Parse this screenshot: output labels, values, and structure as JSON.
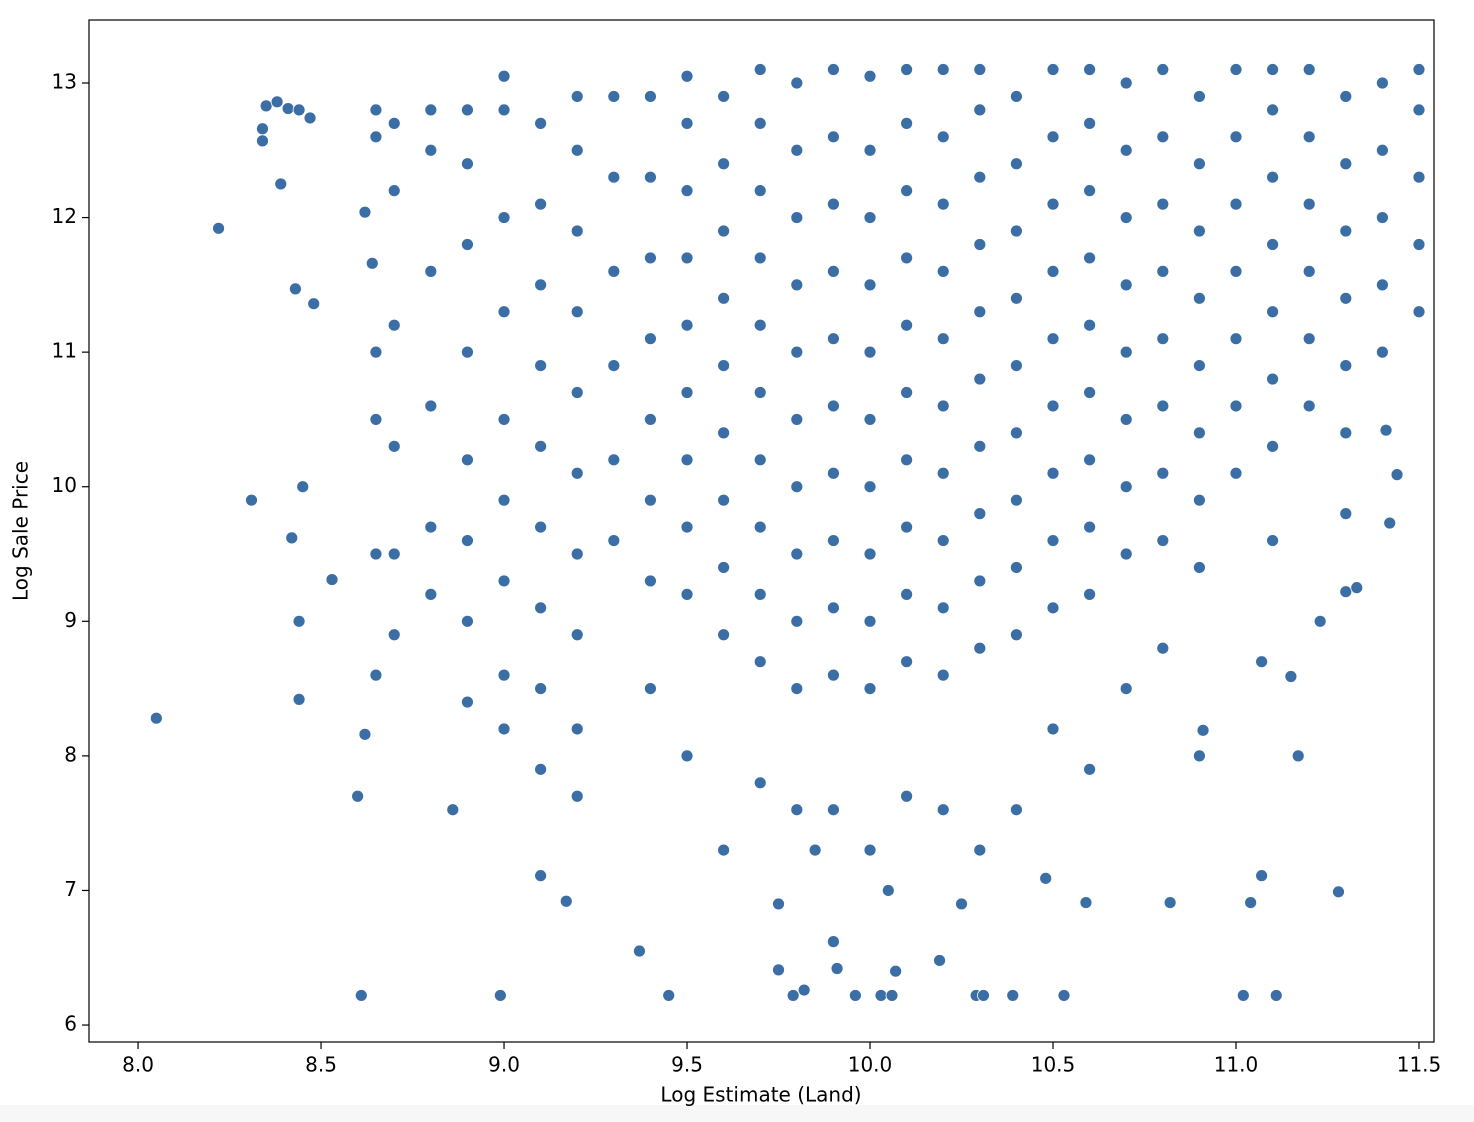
{
  "chart_data": {
    "type": "scatter",
    "xlabel": "Log Estimate (Land)",
    "ylabel": "Log Sale Price",
    "color": "#3a6ea5",
    "xlim": [
      7.866,
      11.541
    ],
    "ylim": [
      5.874,
      13.468
    ],
    "xticks": [
      {
        "value": 8,
        "label": "8.0"
      },
      8.5,
      {
        "value": 9,
        "label": "9.0"
      },
      9.5,
      {
        "value": 10,
        "label": "10.0"
      },
      10.5,
      {
        "value": 11,
        "label": "11.0"
      },
      11.5
    ],
    "yticks": [
      6,
      7,
      8,
      9,
      10,
      11,
      12,
      13
    ],
    "x": [
      8.05,
      8.22,
      8.31,
      8.34,
      8.34,
      8.35,
      8.38,
      8.41,
      8.44,
      8.47,
      8.39,
      8.43,
      8.48,
      8.42,
      8.45,
      8.44,
      8.44,
      8.53,
      8.6,
      8.61,
      8.62,
      8.62,
      8.64,
      8.86,
      8.99,
      9.1,
      9.17,
      9.37,
      9.45,
      9.75,
      9.79,
      9.82,
      9.9,
      9.91,
      9.96,
      10.03,
      10.06,
      10.07,
      10.19,
      10.29,
      10.31,
      10.39,
      10.53,
      11.02,
      11.11,
      11.28,
      11.07,
      11.04,
      10.82,
      10.59,
      10.48,
      11.17,
      11.23,
      11.3,
      11.33,
      11.44,
      11.42,
      11.41,
      11.15,
      11.07,
      10.91,
      10.9,
      8.65,
      8.65,
      8.65,
      8.65,
      8.65,
      8.65,
      8.7,
      8.7,
      8.7,
      8.7,
      8.7,
      8.7,
      8.8,
      8.8,
      8.8,
      8.8,
      8.8,
      8.8,
      8.9,
      8.9,
      8.9,
      8.9,
      8.9,
      8.9,
      8.9,
      8.9,
      9.0,
      9.0,
      9.0,
      9.0,
      9.0,
      9.0,
      9.0,
      9.0,
      9.0,
      9.1,
      9.1,
      9.1,
      9.1,
      9.1,
      9.1,
      9.1,
      9.1,
      9.1,
      9.2,
      9.2,
      9.2,
      9.2,
      9.2,
      9.2,
      9.2,
      9.2,
      9.2,
      9.2,
      9.3,
      9.3,
      9.3,
      9.3,
      9.3,
      9.3,
      9.4,
      9.4,
      9.4,
      9.4,
      9.4,
      9.4,
      9.4,
      9.5,
      9.5,
      9.5,
      9.5,
      9.5,
      9.5,
      9.5,
      9.5,
      9.5,
      9.6,
      9.6,
      9.6,
      9.6,
      9.6,
      9.6,
      9.6,
      9.6,
      9.6,
      9.7,
      9.7,
      9.7,
      9.7,
      9.7,
      9.7,
      9.7,
      9.7,
      9.7,
      9.7,
      9.8,
      9.8,
      9.8,
      9.8,
      9.8,
      9.8,
      9.8,
      9.8,
      9.8,
      9.8,
      9.9,
      9.9,
      9.9,
      9.9,
      9.9,
      9.9,
      9.9,
      9.9,
      9.9,
      9.9,
      10.0,
      10.0,
      10.0,
      10.0,
      10.0,
      10.0,
      10.0,
      10.0,
      10.0,
      10.0,
      10.1,
      10.1,
      10.1,
      10.1,
      10.1,
      10.1,
      10.1,
      10.1,
      10.1,
      10.1,
      10.2,
      10.2,
      10.2,
      10.2,
      10.2,
      10.2,
      10.2,
      10.2,
      10.2,
      10.2,
      10.3,
      10.3,
      10.3,
      10.3,
      10.3,
      10.3,
      10.3,
      10.3,
      10.3,
      10.3,
      10.4,
      10.4,
      10.4,
      10.4,
      10.4,
      10.4,
      10.4,
      10.4,
      10.4,
      10.5,
      10.5,
      10.5,
      10.5,
      10.5,
      10.5,
      10.5,
      10.5,
      10.5,
      10.6,
      10.6,
      10.6,
      10.6,
      10.6,
      10.6,
      10.6,
      10.6,
      10.6,
      10.7,
      10.7,
      10.7,
      10.7,
      10.7,
      10.7,
      10.7,
      10.7,
      10.8,
      10.8,
      10.8,
      10.8,
      10.8,
      10.8,
      10.8,
      10.8,
      10.9,
      10.9,
      10.9,
      10.9,
      10.9,
      10.9,
      10.9,
      11.0,
      11.0,
      11.0,
      11.0,
      11.0,
      11.0,
      11.0,
      11.1,
      11.1,
      11.1,
      11.1,
      11.1,
      11.1,
      11.1,
      11.2,
      11.2,
      11.2,
      11.2,
      11.2,
      11.2,
      11.3,
      11.3,
      11.3,
      11.3,
      11.3,
      11.3,
      11.4,
      11.4,
      11.4,
      11.4,
      11.4,
      11.5,
      11.5,
      11.5,
      11.5,
      11.5,
      9.6,
      9.7,
      9.8,
      9.85,
      9.9,
      10.0,
      10.1,
      10.2,
      10.3,
      10.4,
      9.5,
      10.5,
      10.7,
      10.9,
      11.1,
      11.3,
      9.4,
      10.6,
      10.8,
      9.75,
      10.05,
      10.25
    ],
    "y": [
      8.28,
      11.92,
      9.9,
      12.66,
      12.57,
      12.83,
      12.86,
      12.81,
      12.8,
      12.74,
      12.25,
      11.47,
      11.36,
      9.62,
      10.0,
      9.0,
      8.42,
      9.31,
      7.7,
      6.22,
      8.16,
      12.04,
      11.66,
      7.6,
      6.22,
      7.11,
      6.92,
      6.55,
      6.22,
      6.41,
      6.22,
      6.26,
      6.62,
      6.42,
      6.22,
      6.22,
      6.22,
      6.4,
      6.48,
      6.22,
      6.22,
      6.22,
      6.22,
      6.22,
      6.22,
      6.99,
      7.11,
      6.91,
      6.91,
      6.91,
      7.09,
      8.0,
      9.0,
      9.22,
      9.25,
      10.09,
      9.73,
      10.42,
      8.59,
      8.7,
      8.19,
      8.0,
      8.6,
      9.5,
      10.5,
      11.0,
      12.6,
      12.8,
      8.9,
      9.5,
      10.3,
      11.2,
      12.2,
      12.7,
      9.2,
      9.7,
      10.6,
      11.6,
      12.5,
      12.8,
      8.4,
      9.0,
      9.6,
      10.2,
      11.0,
      11.8,
      12.4,
      12.8,
      8.2,
      8.6,
      9.3,
      9.9,
      10.5,
      11.3,
      12.0,
      12.8,
      13.05,
      7.9,
      8.5,
      9.1,
      9.7,
      10.3,
      10.9,
      11.5,
      12.1,
      12.7,
      7.7,
      8.2,
      8.9,
      9.5,
      10.1,
      10.7,
      11.3,
      11.9,
      12.5,
      12.9,
      9.6,
      10.2,
      10.9,
      11.6,
      12.3,
      12.9,
      9.3,
      9.9,
      10.5,
      11.1,
      11.7,
      12.3,
      12.9,
      9.2,
      9.7,
      10.2,
      10.7,
      11.2,
      11.7,
      12.2,
      12.7,
      13.05,
      8.9,
      9.4,
      9.9,
      10.4,
      10.9,
      11.4,
      11.9,
      12.4,
      12.9,
      8.7,
      9.2,
      9.7,
      10.2,
      10.7,
      11.2,
      11.7,
      12.2,
      12.7,
      13.1,
      8.5,
      9.0,
      9.5,
      10.0,
      10.5,
      11.0,
      11.5,
      12.0,
      12.5,
      13.0,
      8.6,
      9.1,
      9.6,
      10.1,
      10.6,
      11.1,
      11.6,
      12.1,
      12.6,
      13.1,
      8.5,
      9.0,
      9.5,
      10.0,
      10.5,
      11.0,
      11.5,
      12.0,
      12.5,
      13.05,
      8.7,
      9.2,
      9.7,
      10.2,
      10.7,
      11.2,
      11.7,
      12.2,
      12.7,
      13.1,
      8.6,
      9.1,
      9.6,
      10.1,
      10.6,
      11.1,
      11.6,
      12.1,
      12.6,
      13.1,
      8.8,
      9.3,
      9.8,
      10.3,
      10.8,
      11.3,
      11.8,
      12.3,
      12.8,
      13.1,
      8.9,
      9.4,
      9.9,
      10.4,
      10.9,
      11.4,
      11.9,
      12.4,
      12.9,
      9.1,
      9.6,
      10.1,
      10.6,
      11.1,
      11.6,
      12.1,
      12.6,
      13.1,
      9.2,
      9.7,
      10.2,
      10.7,
      11.2,
      11.7,
      12.2,
      12.7,
      13.1,
      9.5,
      10.0,
      10.5,
      11.0,
      11.5,
      12.0,
      12.5,
      13.0,
      9.6,
      10.1,
      10.6,
      11.1,
      11.6,
      12.1,
      12.6,
      13.1,
      9.9,
      10.4,
      10.9,
      11.4,
      11.9,
      12.4,
      12.9,
      10.1,
      10.6,
      11.1,
      11.6,
      12.1,
      12.6,
      13.1,
      10.3,
      10.8,
      11.3,
      11.8,
      12.3,
      12.8,
      13.1,
      10.6,
      11.1,
      11.6,
      12.1,
      12.6,
      13.1,
      10.4,
      10.9,
      11.4,
      11.9,
      12.4,
      12.9,
      11.0,
      11.5,
      12.0,
      12.5,
      13.0,
      11.3,
      11.8,
      12.3,
      12.8,
      13.1,
      7.3,
      7.8,
      7.6,
      7.3,
      7.6,
      7.3,
      7.7,
      7.6,
      7.3,
      7.6,
      8.0,
      8.2,
      8.5,
      9.4,
      9.6,
      9.8,
      8.5,
      7.9,
      8.8,
      6.9,
      7.0,
      6.9
    ]
  }
}
